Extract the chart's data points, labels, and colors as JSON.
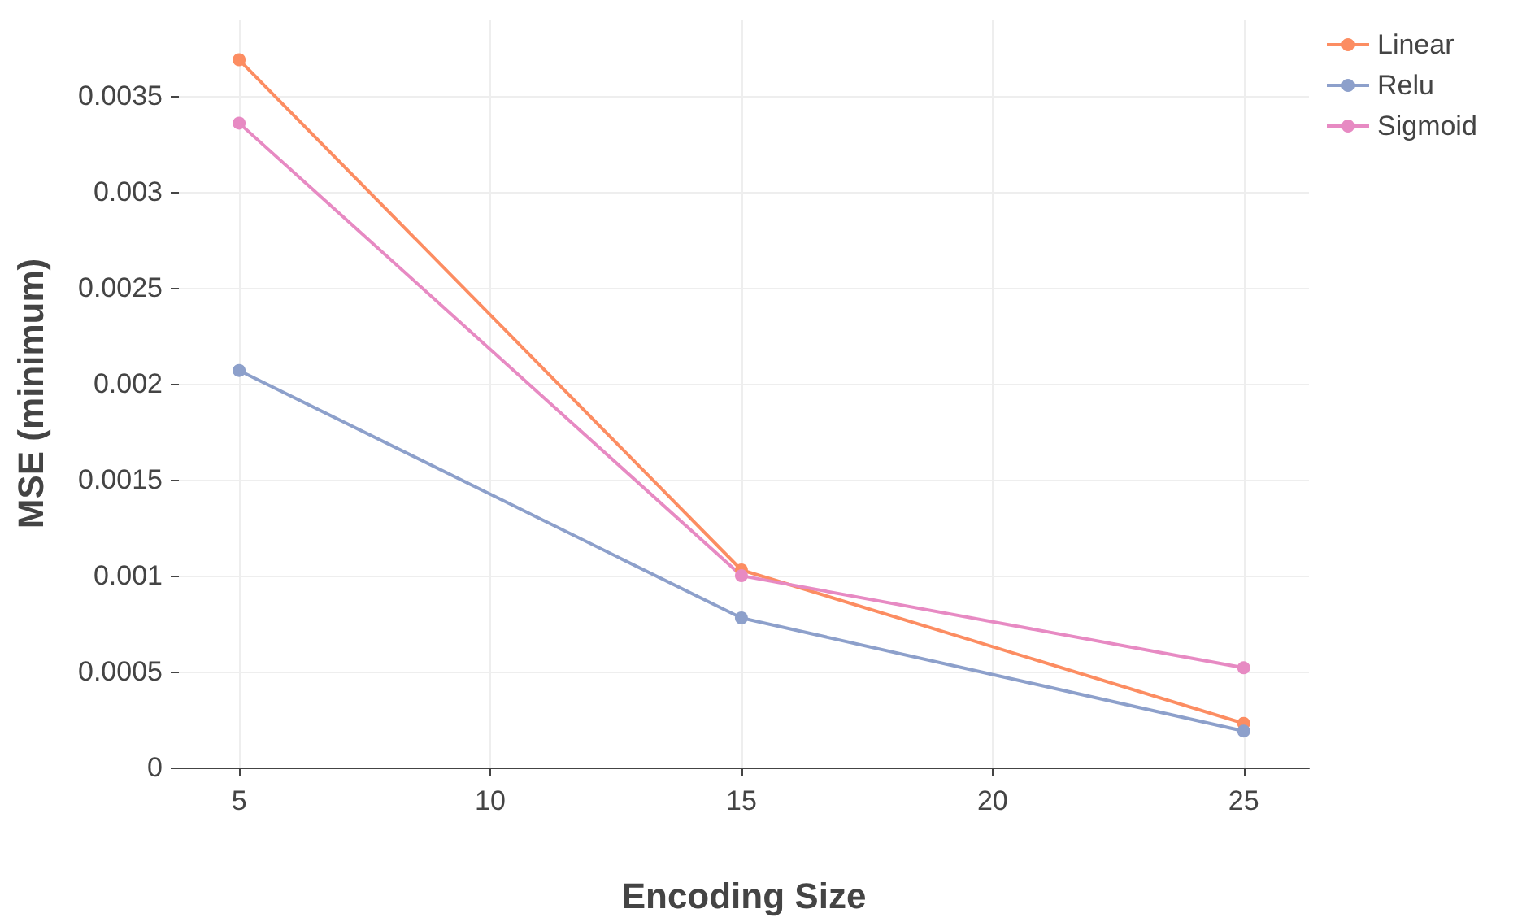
{
  "chart_data": {
    "type": "line",
    "xlabel": "Encoding Size",
    "ylabel": "MSE (minimum)",
    "x": [
      5,
      15,
      25
    ],
    "series": [
      {
        "name": "Linear",
        "color": "#fc8d62",
        "values": [
          0.00369,
          0.00103,
          0.00023
        ]
      },
      {
        "name": "Relu",
        "color": "#8da0cb",
        "values": [
          0.00207,
          0.00078,
          0.00019
        ]
      },
      {
        "name": "Sigmoid",
        "color": "#e78ac3",
        "values": [
          0.00336,
          0.001,
          0.00052
        ]
      }
    ],
    "xlim": [
      3.8,
      26.3
    ],
    "xticks": [
      5,
      10,
      15,
      20,
      25
    ],
    "ylim": [
      0,
      0.0039
    ],
    "yticks": [
      0,
      0.0005,
      0.001,
      0.0015,
      0.002,
      0.0025,
      0.003,
      0.0035
    ],
    "grid": true,
    "legend": "top right",
    "marker": "circle",
    "line_style": "solid"
  }
}
